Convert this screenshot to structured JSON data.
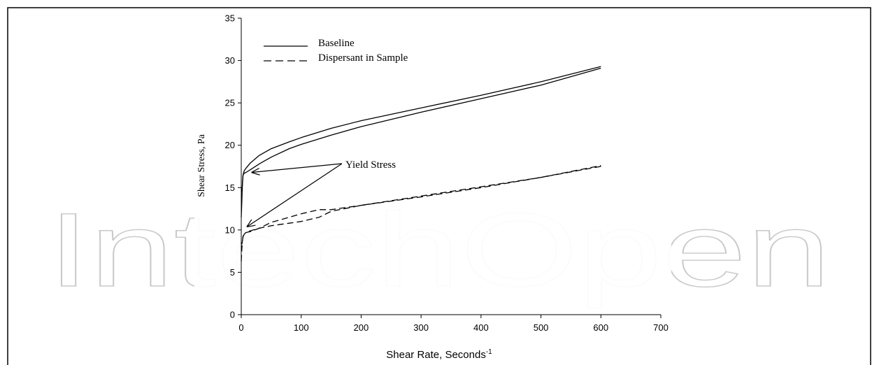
{
  "watermark": "IntechOpen",
  "chart_data": {
    "type": "line",
    "xlabel": "Shear Rate, Seconds",
    "xlabel_superscript": "-1",
    "ylabel": "Shear Stress, Pa",
    "xlim": [
      0,
      700
    ],
    "ylim": [
      0,
      35
    ],
    "x_ticks": [
      "0",
      "100",
      "200",
      "300",
      "400",
      "500",
      "600",
      "700"
    ],
    "y_ticks": [
      "0",
      "5",
      "10",
      "15",
      "20",
      "25",
      "30",
      "35"
    ],
    "grid": false,
    "legend_position": "top-left",
    "legend": [
      {
        "label": "Baseline",
        "style": "solid"
      },
      {
        "label": "Dispersant in Sample",
        "style": "dashed"
      }
    ],
    "annotation": {
      "text": "Yield Stress",
      "targets": [
        [
          18,
          16.8
        ],
        [
          10,
          10.4
        ]
      ]
    },
    "series": [
      {
        "name": "Baseline",
        "style": "solid",
        "curves": [
          {
            "x": [
              0,
              1,
              2,
              3,
              5,
              8,
              15,
              30,
              50,
              80,
              100,
              150,
              200,
              300,
              400,
              500,
              600
            ],
            "y": [
              11.5,
              13.5,
              15.5,
              16.5,
              17.0,
              17.3,
              17.9,
              18.8,
              19.6,
              20.4,
              20.9,
              22.0,
              22.9,
              24.4,
              25.9,
              27.5,
              29.3
            ]
          },
          {
            "x": [
              600,
              500,
              400,
              300,
              200,
              150,
              100,
              80,
              50,
              30,
              15,
              8,
              5,
              3,
              1
            ],
            "y": [
              29.1,
              27.1,
              25.5,
              23.9,
              22.2,
              21.2,
              20.1,
              19.6,
              18.6,
              17.8,
              17.1,
              16.8,
              16.7,
              16.5,
              14.5
            ]
          }
        ]
      },
      {
        "name": "Dispersant in Sample",
        "style": "dashed",
        "curves": [
          {
            "x": [
              0,
              1,
              2,
              3,
              5,
              8,
              15,
              30,
              50,
              80,
              100,
              130,
              150,
              200,
              300,
              400,
              500,
              600
            ],
            "y": [
              6.3,
              7.8,
              8.7,
              9.3,
              9.6,
              9.7,
              9.8,
              10.2,
              10.9,
              11.5,
              11.9,
              12.4,
              12.4,
              12.9,
              13.9,
              15.0,
              16.2,
              17.6
            ]
          },
          {
            "x": [
              600,
              500,
              400,
              300,
              200,
              150,
              130,
              100,
              80,
              50,
              30,
              15,
              8,
              5,
              3,
              1
            ],
            "y": [
              17.5,
              16.2,
              15.1,
              14.0,
              12.9,
              12.2,
              11.5,
              11.0,
              10.8,
              10.5,
              10.2,
              9.9,
              9.7,
              9.5,
              9.2,
              8.3
            ]
          }
        ]
      }
    ]
  }
}
